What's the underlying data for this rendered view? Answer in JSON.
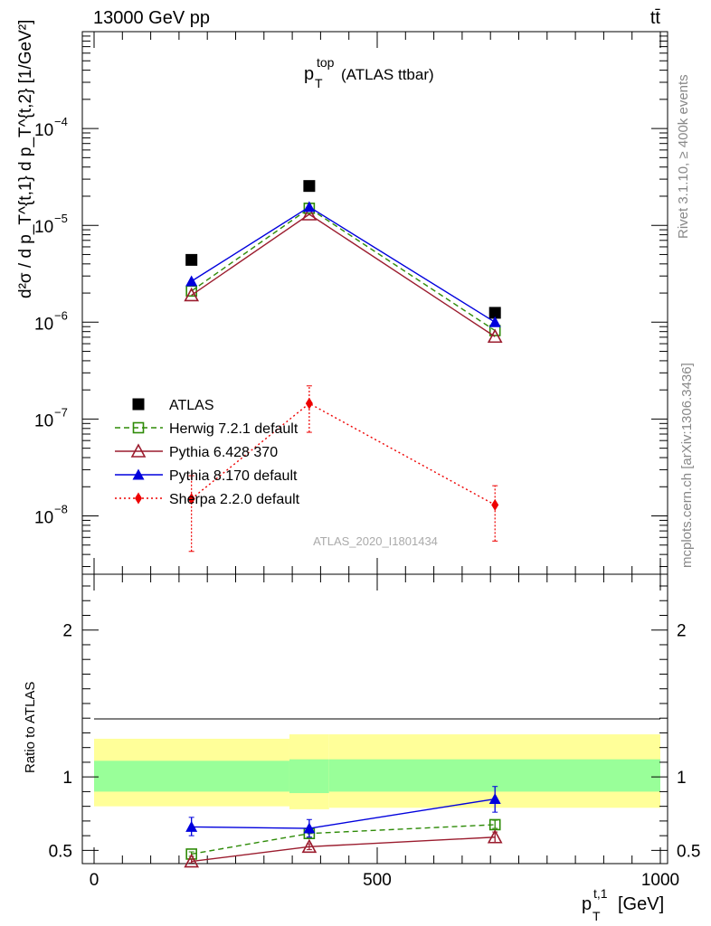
{
  "header": {
    "left": "13000 GeV pp",
    "right": "tt̄"
  },
  "side_labels": {
    "rivet": "Rivet 3.1.10, ≥ 400k events",
    "mcplots": "mcplots.cern.ch [arXiv:1306.3436]"
  },
  "colors": {
    "atlas": "#000000",
    "herwig": "#2e8b07",
    "pythia6": "#9b1c2e",
    "pythia8": "#0000dd",
    "sherpa": "#ee0000",
    "band_inner": "#99ff99",
    "band_outer": "#ffff99"
  },
  "chart_data": [
    {
      "type": "scatter",
      "panel": "main",
      "title": "p_T^top (ATLAS ttbar)",
      "title_main": "p",
      "title_sup": "top",
      "title_sub": "T",
      "title_rest": "(ATLAS ttbar)",
      "ylabel": "d²σ / d p_T^{t,1} d p_T^{t,2}  [1/GeV²]",
      "yscale": "log",
      "ylim": [
        2.5e-09,
        0.001
      ],
      "xlim": [
        -20,
        1000
      ],
      "ytick_labels": [
        {
          "base": "10",
          "exp": "−8",
          "value": 1e-08
        },
        {
          "base": "10",
          "exp": "−7",
          "value": 1e-07
        },
        {
          "base": "10",
          "exp": "−6",
          "value": 1e-06
        },
        {
          "base": "10",
          "exp": "−5",
          "value": 1e-05
        },
        {
          "base": "10",
          "exp": "−4",
          "value": 0.0001
        }
      ],
      "watermark": "ATLAS_2020_I1801434",
      "legend_position": "lower-left",
      "series": [
        {
          "name": "ATLAS",
          "key": "atlas",
          "x": [
            172,
            380,
            708
          ],
          "y": [
            4.4e-06,
            2.55e-05,
            1.25e-06
          ],
          "marker": "square-filled",
          "line": "none"
        },
        {
          "name": "Herwig 7.2.1 default",
          "key": "herwig",
          "x": [
            172,
            380,
            708
          ],
          "y": [
            2.1e-06,
            1.5e-05,
            8.2e-07
          ],
          "marker": "square-open",
          "line": "dashed"
        },
        {
          "name": "Pythia 6.428 370",
          "key": "pythia6",
          "x": [
            172,
            380,
            708
          ],
          "y": [
            1.9e-06,
            1.3e-05,
            7.1e-07
          ],
          "marker": "triangle-open",
          "line": "solid"
        },
        {
          "name": "Pythia 8.170 default",
          "key": "pythia8",
          "x": [
            172,
            380,
            708
          ],
          "y": [
            2.65e-06,
            1.55e-05,
            1e-06
          ],
          "marker": "triangle-filled",
          "line": "solid"
        },
        {
          "name": "Sherpa 2.2.0 default",
          "key": "sherpa",
          "x": [
            172,
            380,
            708
          ],
          "y": [
            1.5e-08,
            1.45e-07,
            1.3e-08
          ],
          "ylo": [
            4.3e-09,
            7.3e-08,
            5.5e-09
          ],
          "yhi": [
            2.6e-08,
            2.2e-07,
            2.05e-08
          ],
          "marker": "diamond-filled",
          "line": "dotted"
        }
      ]
    },
    {
      "type": "line",
      "panel": "ratio",
      "ylabel": "Ratio to ATLAS",
      "xlabel_main": "p",
      "xlabel_sup": "t,1",
      "xlabel_sub": "T",
      "xlabel_unit": "[GeV]",
      "xlim": [
        -20,
        1000
      ],
      "ylim": [
        0.41,
        2.38
      ],
      "xticks": [
        0,
        500,
        1000
      ],
      "xtick_labels": [
        "0",
        "500",
        "1000"
      ],
      "yticks": [
        0.5,
        1,
        2
      ],
      "ytick_labels": [
        "0.5",
        "1",
        "2"
      ],
      "bands": [
        {
          "xmin": 0,
          "xmax": 345,
          "inner": [
            0.9,
            1.11
          ],
          "outer": [
            0.8,
            1.26
          ]
        },
        {
          "xmin": 345,
          "xmax": 415,
          "inner": [
            0.89,
            1.12
          ],
          "outer": [
            0.78,
            1.29
          ]
        },
        {
          "xmin": 415,
          "xmax": 1000,
          "inner": [
            0.9,
            1.12
          ],
          "outer": [
            0.79,
            1.29
          ]
        }
      ],
      "series": [
        {
          "name": "Herwig 7.2.1 default",
          "key": "herwig",
          "x": [
            172,
            380,
            708
          ],
          "y": [
            0.475,
            0.615,
            0.675
          ],
          "ylo": [
            0.46,
            0.59,
            0.65
          ],
          "yhi": [
            0.49,
            0.645,
            0.705
          ],
          "marker": "square-open",
          "line": "dashed"
        },
        {
          "name": "Pythia 6.428 370",
          "key": "pythia6",
          "x": [
            172,
            380,
            708
          ],
          "y": [
            0.425,
            0.525,
            0.59
          ],
          "ylo": [
            0.415,
            0.505,
            0.555
          ],
          "yhi": [
            0.44,
            0.545,
            0.625
          ],
          "marker": "triangle-open",
          "line": "solid"
        },
        {
          "name": "Pythia 8.170 default",
          "key": "pythia8",
          "x": [
            172,
            380,
            708
          ],
          "y": [
            0.66,
            0.65,
            0.85
          ],
          "ylo": [
            0.6,
            0.59,
            0.76
          ],
          "yhi": [
            0.725,
            0.71,
            0.935
          ],
          "marker": "triangle-filled",
          "line": "solid"
        }
      ]
    }
  ]
}
